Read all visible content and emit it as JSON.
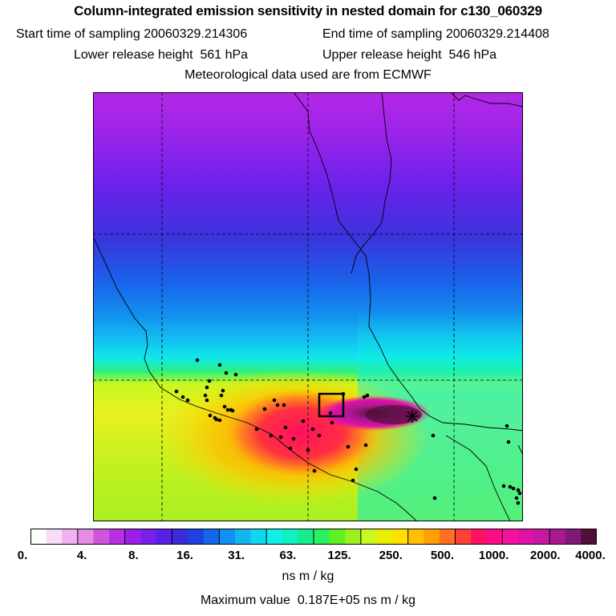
{
  "header": {
    "title": "Column-integrated emission sensitivity in nested domain for c130_060329",
    "start_label": "Start time of sampling",
    "start_value": "20060329.214306",
    "end_label": "End time of sampling",
    "end_value": "20060329.214408",
    "lower_label": "Lower release height",
    "lower_value": "561 hPa",
    "upper_label": "Upper release height",
    "upper_value": "546 hPa",
    "met_line": "Meteorological data used are from ECMWF"
  },
  "legend": {
    "colors": [
      "#ffffff",
      "#f9dcf8",
      "#f0b2ef",
      "#e48ce6",
      "#cf55dc",
      "#b92ee0",
      "#9d1ee9",
      "#7620ea",
      "#5720e8",
      "#3a2ad8",
      "#2040e0",
      "#1368ea",
      "#1191f0",
      "#13b4f0",
      "#11d6f0",
      "#10f0e8",
      "#10f0c0",
      "#18ea90",
      "#2af060",
      "#60f020",
      "#9cf020",
      "#c8f820",
      "#e8f000",
      "#ffe000",
      "#ffc000",
      "#ffa000",
      "#ff7020",
      "#ff4038",
      "#ff1060",
      "#ff0c88",
      "#f510a0",
      "#e010a8",
      "#c818a0",
      "#a8188e",
      "#801878",
      "#501038"
    ],
    "tick_labels": [
      "0.",
      "4.",
      "8.",
      "16.",
      "31.",
      "63.",
      "125.",
      "250.",
      "500.",
      "1000.",
      "2000.",
      "4000."
    ],
    "units": "ns m / kg",
    "max_label": "Maximum value",
    "max_value": "0.187E+05 ns m / kg"
  },
  "map": {
    "release_box_color": "#000000",
    "receptor_marker": "cross"
  }
}
